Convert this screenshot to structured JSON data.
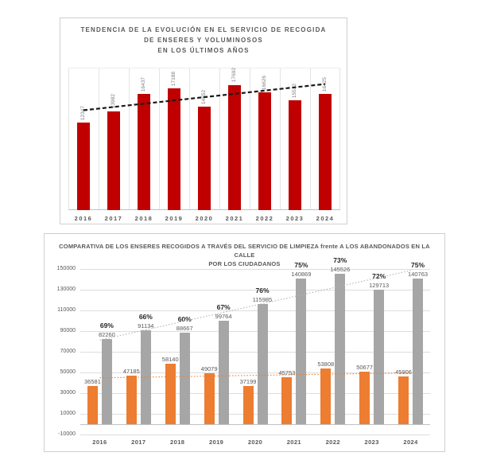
{
  "chart_data": [
    {
      "type": "bar",
      "title_lines": [
        "TENDENCIA DE LA EVOLUCIÓN EN EL SERVICIO DE RECOGIDA",
        "DE ENSERES Y VOLUMINOSOS",
        "EN LOS ÚLTIMOS AÑOS"
      ],
      "categories": [
        "2016",
        "2017",
        "2018",
        "2019",
        "2020",
        "2021",
        "2022",
        "2023",
        "2024"
      ],
      "values": [
        12347,
        13982,
        16437,
        17188,
        14652,
        17692,
        16626,
        15532,
        16425
      ],
      "bar_color": "#C00000",
      "value_label_color": "#7f7f7f",
      "ylim": [
        0,
        20000
      ],
      "grid": "vertical-only",
      "legend": "none",
      "trendline": {
        "style": "dashed",
        "color": "#1a1a1a",
        "start_value": 14100,
        "end_value": 17800
      }
    },
    {
      "type": "bar",
      "title_lines": [
        "COMPARATIVA DE LOS ENSERES RECOGIDOS A TRAVÉS DEL SERVICIO DE LIMPIEZA frente A LOS ABANDONADOS EN LA CALLE",
        "POR LOS CIUDADANOS"
      ],
      "categories": [
        "2016",
        "2017",
        "2018",
        "2019",
        "2020",
        "2021",
        "2022",
        "2023",
        "2024"
      ],
      "series": [
        {
          "name": "enseres-recogidos-servicio-limpieza",
          "color": "#ED7D31",
          "values": [
            36581,
            47185,
            58140,
            49079,
            37199,
            45753,
            53808,
            50677,
            45906
          ]
        },
        {
          "name": "enseres-abandonados-en-la-calle",
          "color": "#A6A6A6",
          "values": [
            82260,
            91134,
            88667,
            99764,
            115985,
            140869,
            145526,
            129713,
            140763
          ],
          "percent_labels": [
            "69%",
            "66%",
            "60%",
            "67%",
            "76%",
            "75%",
            "73%",
            "72%",
            "75%"
          ]
        }
      ],
      "ylim": [
        -10000,
        150000
      ],
      "ytick_labels": [
        "150000",
        "130000",
        "110000",
        "90000",
        "70000",
        "50000",
        "30000",
        "10000",
        "-10000"
      ],
      "grid": "horizontal-only",
      "legend": "none",
      "trendlines": [
        {
          "series": 1,
          "style": "dotted",
          "color": "#b3b3b3",
          "start_value": 81300,
          "end_value": 148600
        },
        {
          "series": 0,
          "style": "dotted",
          "color": "#ED7D31",
          "start_value": 44800,
          "end_value": 49600
        }
      ]
    }
  ]
}
